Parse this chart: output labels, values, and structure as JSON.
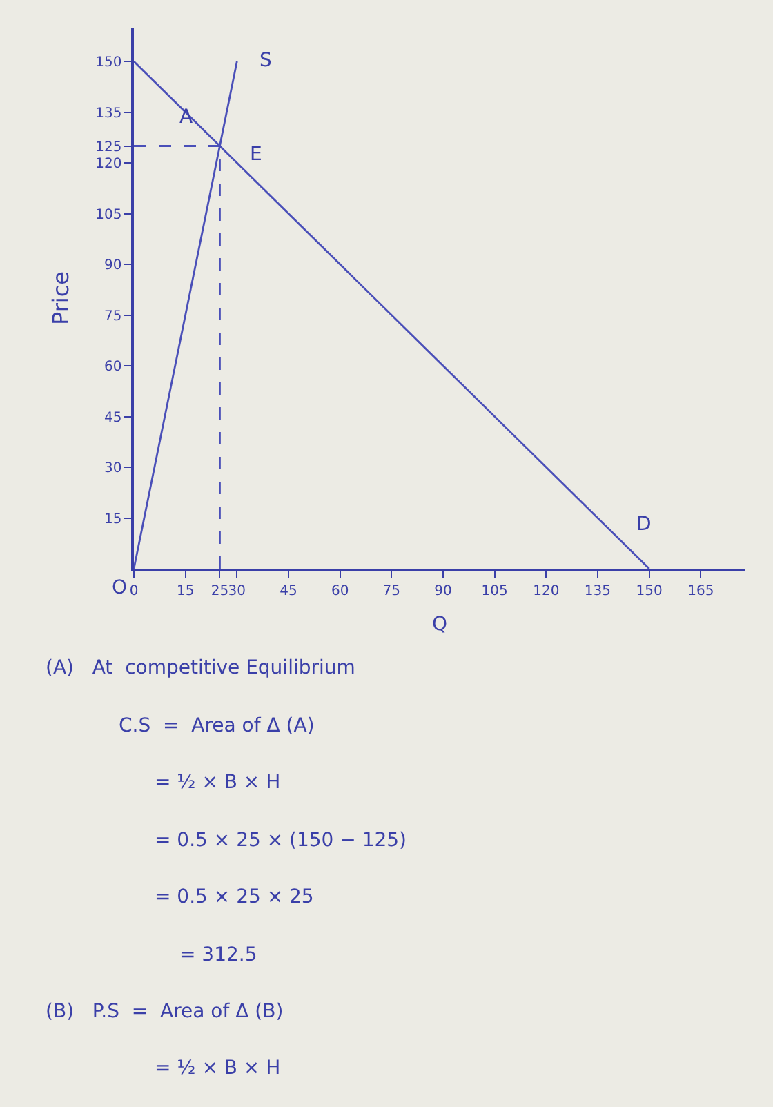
{
  "chart_data": {
    "type": "line",
    "xlabel": "Q",
    "ylabel": "Price",
    "xlim": [
      0,
      178
    ],
    "ylim": [
      0,
      160
    ],
    "xticks": [
      0,
      15,
      25,
      30,
      45,
      60,
      75,
      90,
      105,
      120,
      135,
      150,
      165
    ],
    "yticks": [
      15,
      30,
      45,
      60,
      75,
      90,
      105,
      120,
      125,
      135,
      150
    ],
    "grid": false,
    "marker": "none",
    "series": [
      {
        "x": [
          0,
          150
        ],
        "values": [
          150,
          0
        ],
        "color": "#4a4fb8",
        "line_style": "solid"
      },
      {
        "x": [
          0,
          30
        ],
        "values": [
          0,
          150
        ],
        "color": "#4a4fb8",
        "line_style": "solid"
      },
      {
        "x": [
          0,
          25
        ],
        "values": [
          125,
          125
        ],
        "color": "#4a4fb8",
        "line_style": "dashed"
      },
      {
        "x": [
          25,
          25
        ],
        "values": [
          0,
          125
        ],
        "color": "#4a4fb8",
        "line_style": "dashed"
      }
    ],
    "annotations": [
      "A",
      "E",
      "S",
      "D",
      "O",
      "(A)   At  competitive Equilibrium",
      "C.S  =  Area of Δ (A)",
      "= ½ × B × H",
      "= 0.5 × 25 × (150 − 125)",
      "= 0.5 × 25 × 25",
      "= 312.5",
      "(B)   P.S  =  Area of Δ (B)",
      "= ½ × B × H"
    ]
  }
}
